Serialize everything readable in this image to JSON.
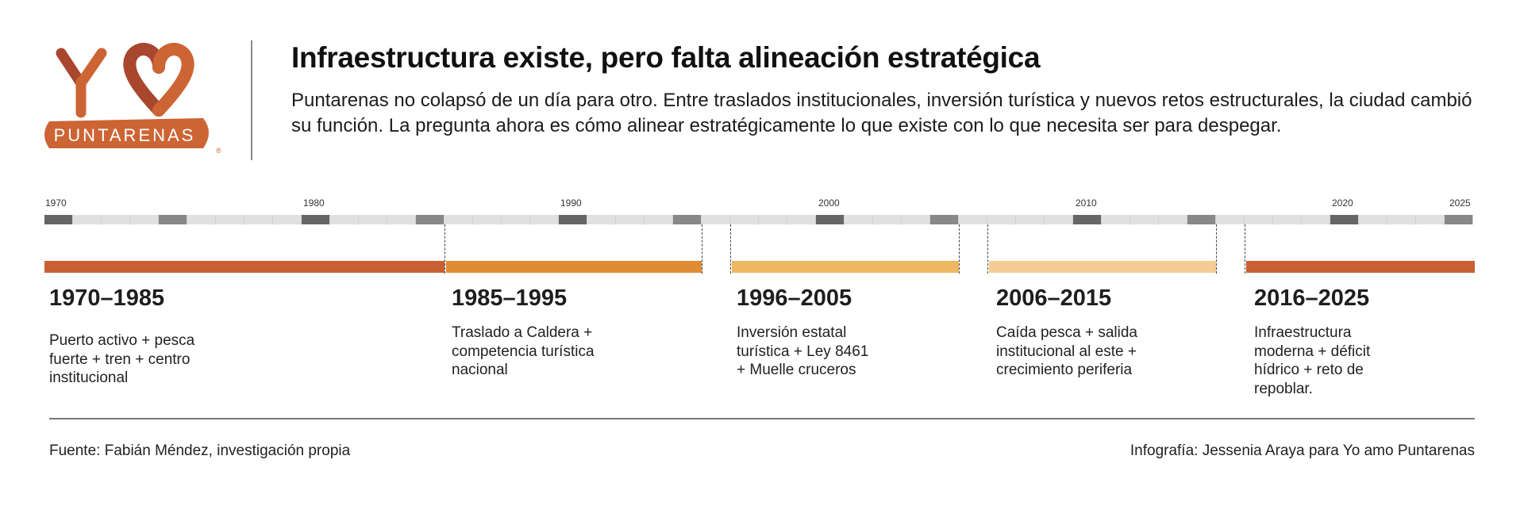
{
  "logo": {
    "text_top": "YO",
    "text_bottom": "PUNTARENAS",
    "registered": "®"
  },
  "header": {
    "title": "Infraestructura existe, pero falta alineación estratégica",
    "intro": "Puntarenas no colapsó de un día para otro. Entre traslados institucionales, inversión turística y nuevos retos estructurales, la ciudad cambió su función. La pregunta ahora es cómo alinear estratégicamente lo que existe con lo que necesita ser para despegar."
  },
  "axis": {
    "labels": [
      "1970",
      "1980",
      "1990",
      "2000",
      "2010",
      "2020",
      "2025"
    ]
  },
  "periods": [
    {
      "title": "1970–1985",
      "description": "Puerto activo + pesca\nfuerte + tren + centro\ninstitucional",
      "color": "#c96033"
    },
    {
      "title": "1985–1995",
      "description": "Traslado a Caldera +\ncompetencia turística\nnacional",
      "color": "#e08c35"
    },
    {
      "title": "1996–2005",
      "description": "Inversión estatal\nturística + Ley 8461\n+ Muelle cruceros",
      "color": "#eeb862"
    },
    {
      "title": "2006–2015",
      "description": "Caída pesca + salida\ninstitucional al este +\ncrecimiento periferia",
      "color": "#f5cd94"
    },
    {
      "title": "2016–2025",
      "description": "Infraestructura\nmoderna + déficit\nhídrico + reto de\nrepoblar.",
      "color": "#c96033"
    }
  ],
  "footer": {
    "source": "Fuente: Fabián Méndez, investigación propia",
    "credit": "Infografía: Jessenia Araya para Yo amo Puntarenas"
  }
}
